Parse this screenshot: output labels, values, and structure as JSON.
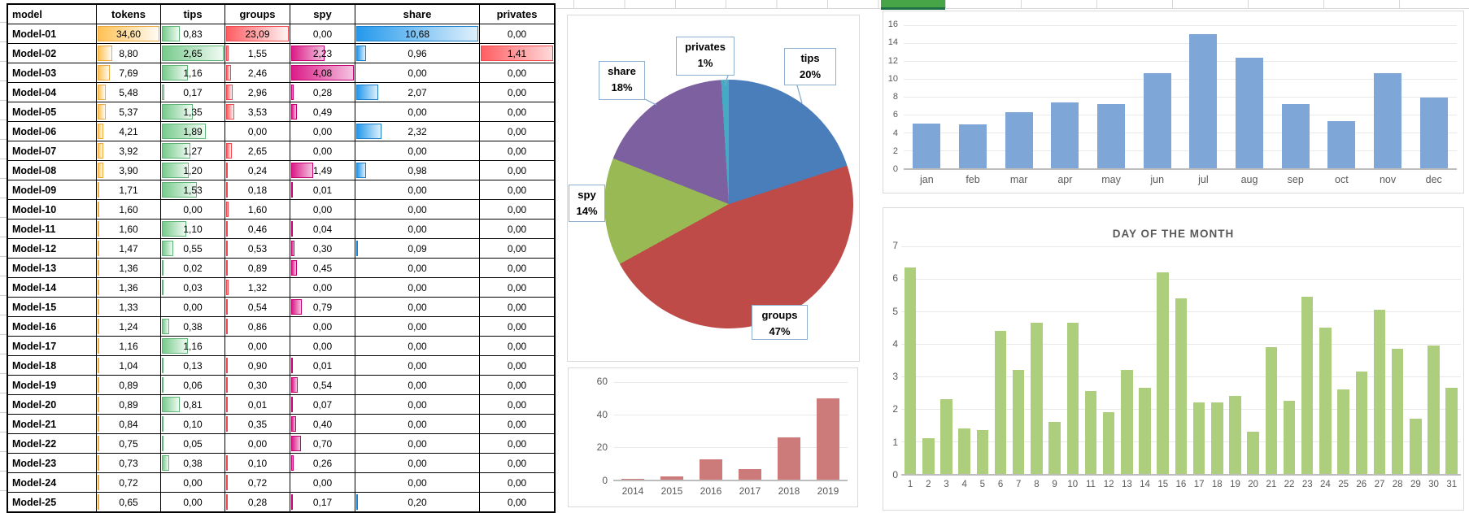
{
  "sheet": {
    "green_cell_color": "#47A447",
    "green_cell_border": "#1E7145"
  },
  "table": {
    "header": [
      "model",
      "tokens",
      "tips",
      "groups",
      "spy",
      "share",
      "privates"
    ],
    "max": {
      "tokens": 34.6,
      "tips": 2.65,
      "groups": 23.09,
      "spy": 4.08,
      "share": 10.68,
      "privates": 1.41
    },
    "bar_styles": {
      "tokens": {
        "from": "#FFC254",
        "to": "#FFFBF4",
        "border": "#EFA93E"
      },
      "tips": {
        "from": "#77CB8C",
        "to": "#F0FAF3",
        "border": "#5DB576"
      },
      "groups": {
        "from": "#FF5E62",
        "to": "#FFF3F3",
        "border": "#F2484D"
      },
      "spy": {
        "from": "#DB1C88",
        "to": "#F4C3E0",
        "border": "#C4006F"
      },
      "share": {
        "from": "#2499EC",
        "to": "#DFF0FC",
        "border": "#1C7FCB"
      },
      "privates": {
        "from": "#FF5E62",
        "to": "#FFD9D9",
        "border": "#F2484D"
      }
    },
    "rows": [
      [
        "Model-01",
        "34,60",
        "0,83",
        "23,09",
        "0,00",
        "10,68",
        "0,00"
      ],
      [
        "Model-02",
        "8,80",
        "2,65",
        "1,55",
        "2,23",
        "0,96",
        "1,41"
      ],
      [
        "Model-03",
        "7,69",
        "1,16",
        "2,46",
        "4,08",
        "0,00",
        "0,00"
      ],
      [
        "Model-04",
        "5,48",
        "0,17",
        "2,96",
        "0,28",
        "2,07",
        "0,00"
      ],
      [
        "Model-05",
        "5,37",
        "1,35",
        "3,53",
        "0,49",
        "0,00",
        "0,00"
      ],
      [
        "Model-06",
        "4,21",
        "1,89",
        "0,00",
        "0,00",
        "2,32",
        "0,00"
      ],
      [
        "Model-07",
        "3,92",
        "1,27",
        "2,65",
        "0,00",
        "0,00",
        "0,00"
      ],
      [
        "Model-08",
        "3,90",
        "1,20",
        "0,24",
        "1,49",
        "0,98",
        "0,00"
      ],
      [
        "Model-09",
        "1,71",
        "1,53",
        "0,18",
        "0,01",
        "0,00",
        "0,00"
      ],
      [
        "Model-10",
        "1,60",
        "0,00",
        "1,60",
        "0,00",
        "0,00",
        "0,00"
      ],
      [
        "Model-11",
        "1,60",
        "1,10",
        "0,46",
        "0,04",
        "0,00",
        "0,00"
      ],
      [
        "Model-12",
        "1,47",
        "0,55",
        "0,53",
        "0,30",
        "0,09",
        "0,00"
      ],
      [
        "Model-13",
        "1,36",
        "0,02",
        "0,89",
        "0,45",
        "0,00",
        "0,00"
      ],
      [
        "Model-14",
        "1,36",
        "0,03",
        "1,32",
        "0,00",
        "0,00",
        "0,00"
      ],
      [
        "Model-15",
        "1,33",
        "0,00",
        "0,54",
        "0,79",
        "0,00",
        "0,00"
      ],
      [
        "Model-16",
        "1,24",
        "0,38",
        "0,86",
        "0,00",
        "0,00",
        "0,00"
      ],
      [
        "Model-17",
        "1,16",
        "1,16",
        "0,00",
        "0,00",
        "0,00",
        "0,00"
      ],
      [
        "Model-18",
        "1,04",
        "0,13",
        "0,90",
        "0,01",
        "0,00",
        "0,00"
      ],
      [
        "Model-19",
        "0,89",
        "0,06",
        "0,30",
        "0,54",
        "0,00",
        "0,00"
      ],
      [
        "Model-20",
        "0,89",
        "0,81",
        "0,01",
        "0,07",
        "0,00",
        "0,00"
      ],
      [
        "Model-21",
        "0,84",
        "0,10",
        "0,35",
        "0,40",
        "0,00",
        "0,00"
      ],
      [
        "Model-22",
        "0,75",
        "0,05",
        "0,00",
        "0,70",
        "0,00",
        "0,00"
      ],
      [
        "Model-23",
        "0,73",
        "0,38",
        "0,10",
        "0,26",
        "0,00",
        "0,00"
      ],
      [
        "Model-24",
        "0,72",
        "0,00",
        "0,72",
        "0,00",
        "0,00",
        "0,00"
      ],
      [
        "Model-25",
        "0,65",
        "0,00",
        "0,28",
        "0,17",
        "0,20",
        "0,00"
      ]
    ]
  },
  "chart_data": [
    {
      "type": "pie",
      "name": "metric-share-pie",
      "slices": [
        {
          "label": "tips",
          "pct": 20,
          "color": "#4A7EBB"
        },
        {
          "label": "groups",
          "pct": 47,
          "color": "#BE4B48"
        },
        {
          "label": "spy",
          "pct": 14,
          "color": "#98B954"
        },
        {
          "label": "share",
          "pct": 18,
          "color": "#7D60A0"
        },
        {
          "label": "privates",
          "pct": 1,
          "color": "#46AAC5"
        }
      ],
      "callouts": [
        {
          "line1": "tips",
          "line2": "20%"
        },
        {
          "line1": "groups",
          "line2": "47%"
        },
        {
          "line1": "spy",
          "line2": "14%"
        },
        {
          "line1": "share",
          "line2": "18%"
        },
        {
          "line1": "privates",
          "line2": "1%"
        }
      ],
      "legend": "callout-labels",
      "start_angle_deg": 0
    },
    {
      "type": "bar",
      "name": "years",
      "categories": [
        "2014",
        "2015",
        "2016",
        "2017",
        "2018",
        "2019"
      ],
      "values": [
        0.5,
        2,
        12.5,
        6.5,
        26,
        50
      ],
      "ylim": [
        0,
        60
      ],
      "yticks": [
        60,
        40,
        20,
        0
      ],
      "bar_color": "#CC7A7A",
      "grid": true
    },
    {
      "type": "bar",
      "name": "months",
      "categories": [
        "jan",
        "feb",
        "mar",
        "apr",
        "may",
        "jun",
        "jul",
        "aug",
        "sep",
        "oct",
        "nov",
        "dec"
      ],
      "values": [
        5.0,
        4.9,
        6.3,
        7.4,
        7.2,
        10.6,
        15.0,
        12.4,
        7.2,
        5.3,
        10.6,
        7.9
      ],
      "ylim": [
        0,
        16
      ],
      "yticks": [
        16,
        14,
        12,
        10,
        8,
        6,
        4,
        2,
        0
      ],
      "bar_color": "#7EA6D6",
      "grid": true
    },
    {
      "type": "bar",
      "name": "days",
      "title": "DAY OF THE MONTH",
      "categories": [
        "1",
        "2",
        "3",
        "4",
        "5",
        "6",
        "7",
        "8",
        "9",
        "10",
        "11",
        "12",
        "13",
        "14",
        "15",
        "16",
        "17",
        "18",
        "19",
        "20",
        "21",
        "22",
        "23",
        "24",
        "25",
        "26",
        "27",
        "28",
        "29",
        "30",
        "31"
      ],
      "values": [
        6.35,
        1.1,
        2.3,
        1.4,
        1.35,
        4.4,
        3.2,
        4.65,
        1.6,
        4.65,
        2.55,
        1.9,
        3.2,
        2.65,
        6.2,
        5.4,
        2.2,
        2.2,
        2.4,
        1.3,
        3.9,
        2.25,
        5.45,
        4.5,
        2.6,
        3.15,
        5.05,
        3.85,
        1.7,
        3.95,
        2.65
      ],
      "ylim": [
        0,
        7
      ],
      "yticks": [
        7,
        6,
        5,
        4,
        3,
        2,
        1,
        0
      ],
      "bar_color": "#ADCE7D",
      "grid": true
    }
  ]
}
